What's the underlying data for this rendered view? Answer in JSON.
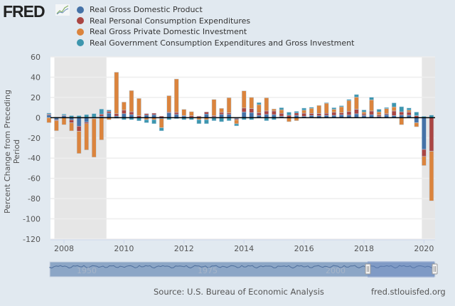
{
  "brand": {
    "logo_text": "FRED",
    "logo_icon": "line-chart-icon"
  },
  "source_text": "Source: U.S. Bureau of Economic Analysis",
  "site_url": "fred.stlouisfed.org",
  "navigator": {
    "labels": [
      "1950",
      "1975",
      "2000"
    ],
    "selected_range": [
      "2007",
      "2020"
    ]
  },
  "chart_data": {
    "type": "bar",
    "stacked": true,
    "title": "",
    "xlabel": "",
    "ylabel": "Percent Change from Preceding Period",
    "ylim": [
      -120,
      60
    ],
    "yticks": [
      60,
      40,
      20,
      0,
      -20,
      -40,
      -60,
      -80,
      -100,
      -120
    ],
    "xticks": [
      "2008",
      "2010",
      "2012",
      "2014",
      "2016",
      "2018",
      "2020"
    ],
    "grid": true,
    "legend_position": "top-left",
    "recessions": [
      [
        "2007Q4",
        "2009Q2"
      ],
      [
        "2020Q1",
        "2020Q2"
      ]
    ],
    "categories": [
      "2007Q3",
      "2007Q4",
      "2008Q1",
      "2008Q2",
      "2008Q3",
      "2008Q4",
      "2009Q1",
      "2009Q2",
      "2009Q3",
      "2009Q4",
      "2010Q1",
      "2010Q2",
      "2010Q3",
      "2010Q4",
      "2011Q1",
      "2011Q2",
      "2011Q3",
      "2011Q4",
      "2012Q1",
      "2012Q2",
      "2012Q3",
      "2012Q4",
      "2013Q1",
      "2013Q2",
      "2013Q3",
      "2013Q4",
      "2014Q1",
      "2014Q2",
      "2014Q3",
      "2014Q4",
      "2015Q1",
      "2015Q2",
      "2015Q3",
      "2015Q4",
      "2016Q1",
      "2016Q2",
      "2016Q3",
      "2016Q4",
      "2017Q1",
      "2017Q2",
      "2017Q3",
      "2017Q4",
      "2018Q1",
      "2018Q2",
      "2018Q3",
      "2018Q4",
      "2019Q1",
      "2019Q2",
      "2019Q3",
      "2019Q4",
      "2020Q1",
      "2020Q2"
    ],
    "series": [
      {
        "name": "Real Gross Domestic Product",
        "color": "#4572a7",
        "values": [
          2.5,
          -2.0,
          2.0,
          -2.1,
          -8.4,
          -4.4,
          -0.6,
          1.5,
          4.5,
          1.5,
          3.9,
          3.0,
          -0.1,
          2.5,
          2.9,
          -1.0,
          4.7,
          3.2,
          1.7,
          0.5,
          0.5,
          3.6,
          0.8,
          3.2,
          3.2,
          -1.1,
          5.5,
          5.0,
          2.3,
          3.2,
          3.0,
          1.3,
          0.1,
          2.3,
          1.3,
          2.2,
          1.8,
          2.3,
          2.3,
          2.8,
          2.5,
          3.8,
          2.1,
          2.9,
          1.1,
          2.9,
          2.0,
          2.6,
          2.4,
          -5.0,
          -31.4,
          0
        ]
      },
      {
        "name": "Real Personal Consumption Expenditures",
        "color": "#aa4643",
        "values": [
          1.0,
          -1.0,
          0.5,
          -3.0,
          -5.0,
          -1.5,
          -0.5,
          2.0,
          1.8,
          2.4,
          3.5,
          2.8,
          2.0,
          1.5,
          1.5,
          1.5,
          1.0,
          2.0,
          0.5,
          1.4,
          1.0,
          2.0,
          1.2,
          2.0,
          1.5,
          -1.0,
          4.0,
          4.0,
          2.6,
          3.4,
          3.6,
          3.0,
          2.3,
          2.4,
          3.1,
          2.0,
          2.3,
          2.0,
          3.0,
          2.0,
          3.5,
          4.5,
          1.5,
          3.7,
          1.6,
          1.1,
          4.6,
          3.2,
          3.1,
          2.0,
          -6.9,
          -33.2
        ]
      },
      {
        "name": "Real Gross Private Domestic Investment",
        "color": "#db843d",
        "values": [
          -5.0,
          -10.0,
          -7.0,
          -8.0,
          -22.0,
          -26.0,
          -38.0,
          -22.0,
          -2.0,
          41.0,
          8.0,
          21.0,
          17.0,
          -2.0,
          -2.0,
          -9.0,
          16.0,
          33.0,
          6.0,
          4.0,
          -2.0,
          -2.0,
          16.0,
          4.0,
          15.0,
          -4.0,
          17.0,
          11.0,
          8.0,
          13.0,
          2.0,
          3.5,
          -4.0,
          -3.0,
          3.0,
          5.0,
          8.0,
          10.0,
          3.0,
          6.0,
          11.0,
          12.0,
          2.0,
          11.0,
          3.0,
          5.0,
          4.0,
          -7.0,
          2.0,
          -4.0,
          -9.0,
          -49.0
        ]
      },
      {
        "name": "Real Government Consumption Expenditures and Gross Investment",
        "color": "#3d96ae",
        "values": [
          1.0,
          0.5,
          1.0,
          2.0,
          2.0,
          3.0,
          4.0,
          5.0,
          1.3,
          -0.7,
          -2.0,
          -2.0,
          -3.0,
          -3.0,
          -4.0,
          -3.0,
          -2.0,
          -1.0,
          -2.0,
          -2.0,
          -4.0,
          -4.0,
          -3.0,
          -4.0,
          -3.0,
          -2.0,
          -2.0,
          -2.0,
          2.0,
          -3.0,
          -2.0,
          2.0,
          3.0,
          1.5,
          2.0,
          1.0,
          -0.5,
          0.5,
          1.5,
          1.0,
          1.0,
          2.5,
          2.0,
          2.5,
          2.6,
          1.0,
          4.0,
          5.0,
          2.0,
          3.5,
          1.3,
          2.5
        ]
      }
    ]
  }
}
